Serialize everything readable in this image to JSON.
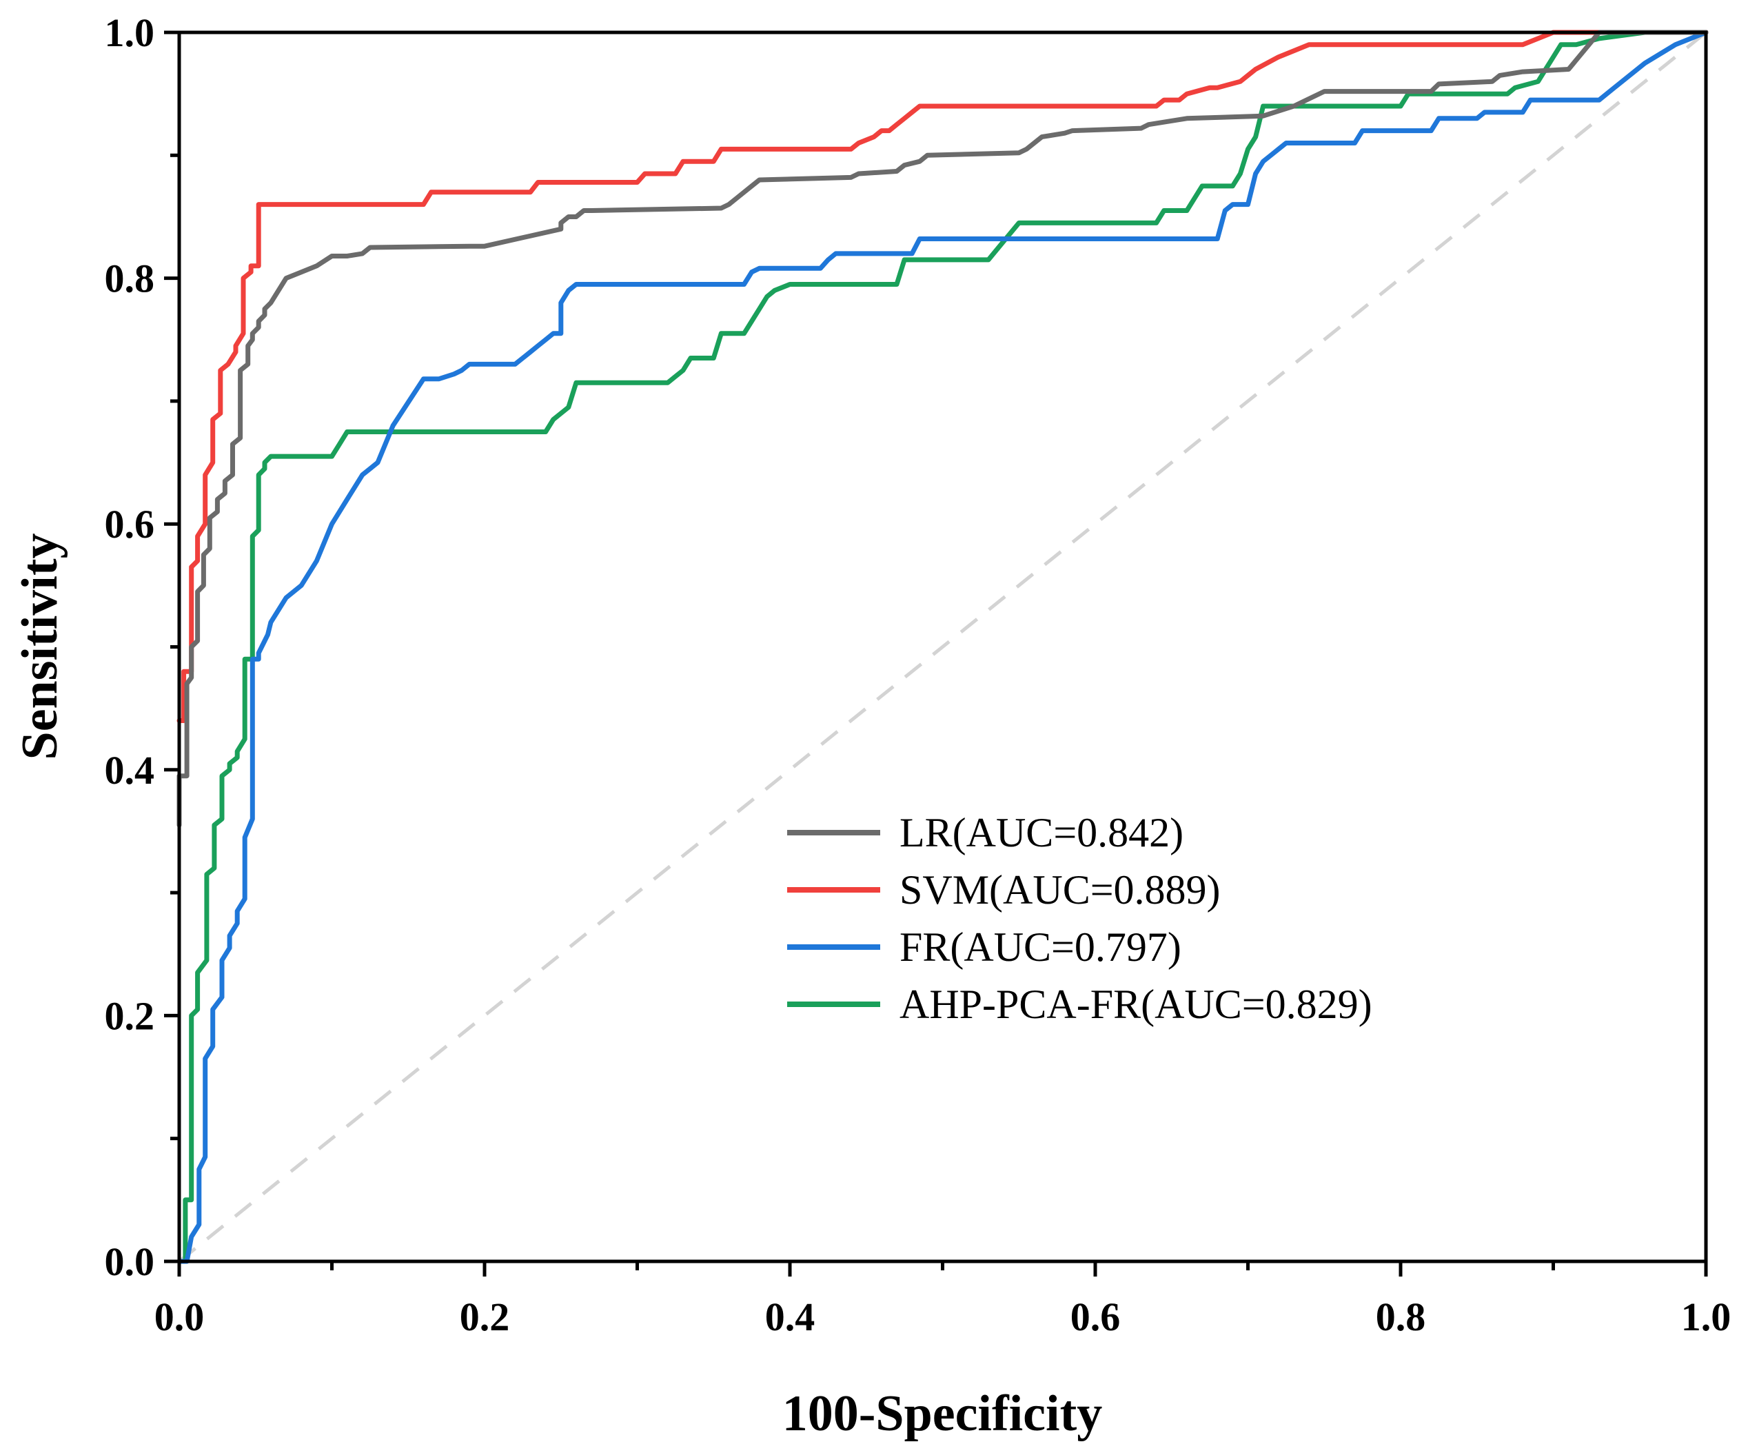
{
  "chart_data": {
    "type": "line",
    "title": "",
    "xlabel": "100-Specificity",
    "ylabel": "Sensitivity",
    "xlim": [
      0,
      1
    ],
    "ylim": [
      0,
      1
    ],
    "x_ticks": [
      "0.0",
      "0.2",
      "0.4",
      "0.6",
      "0.8",
      "1.0"
    ],
    "y_ticks": [
      "0.0",
      "0.2",
      "0.4",
      "0.6",
      "0.8",
      "1.0"
    ],
    "grid": false,
    "legend_position": "lower-right",
    "reference_line": {
      "name": "chance",
      "color": "#d3d3d3",
      "x": [
        0,
        1
      ],
      "y": [
        0,
        1
      ]
    },
    "series": [
      {
        "name": "LR(AUC=0.842)",
        "color": "#6b6b6b",
        "x": [
          0,
          0,
          0.005,
          0.005,
          0.008,
          0.008,
          0.012,
          0.012,
          0.016,
          0.016,
          0.02,
          0.02,
          0.025,
          0.025,
          0.03,
          0.03,
          0.035,
          0.035,
          0.04,
          0.04,
          0.045,
          0.045,
          0.048,
          0.048,
          0.052,
          0.052,
          0.056,
          0.056,
          0.06,
          0.07,
          0.08,
          0.09,
          0.1,
          0.11,
          0.12,
          0.125,
          0.19,
          0.2,
          0.25,
          0.25,
          0.255,
          0.26,
          0.265,
          0.27,
          0.355,
          0.36,
          0.365,
          0.37,
          0.375,
          0.38,
          0.44,
          0.445,
          0.47,
          0.475,
          0.485,
          0.49,
          0.55,
          0.555,
          0.56,
          0.565,
          0.58,
          0.585,
          0.63,
          0.635,
          0.66,
          0.71,
          0.73,
          0.75,
          0.82,
          0.825,
          0.86,
          0.865,
          0.88,
          0.91,
          0.93,
          1
        ],
        "y": [
          0.355,
          0.395,
          0.395,
          0.47,
          0.475,
          0.5,
          0.505,
          0.545,
          0.55,
          0.575,
          0.58,
          0.605,
          0.61,
          0.62,
          0.625,
          0.635,
          0.64,
          0.665,
          0.67,
          0.725,
          0.73,
          0.745,
          0.75,
          0.755,
          0.76,
          0.765,
          0.77,
          0.775,
          0.78,
          0.8,
          0.805,
          0.81,
          0.818,
          0.818,
          0.82,
          0.825,
          0.826,
          0.826,
          0.84,
          0.845,
          0.85,
          0.85,
          0.855,
          0.855,
          0.857,
          0.86,
          0.865,
          0.87,
          0.875,
          0.88,
          0.882,
          0.885,
          0.887,
          0.892,
          0.895,
          0.9,
          0.902,
          0.905,
          0.91,
          0.915,
          0.918,
          0.92,
          0.922,
          0.925,
          0.93,
          0.932,
          0.94,
          0.952,
          0.952,
          0.958,
          0.96,
          0.965,
          0.968,
          0.97,
          1,
          1
        ]
      },
      {
        "name": "SVM(AUC=0.889)",
        "color": "#f0403c",
        "x": [
          0,
          0.003,
          0.003,
          0.008,
          0.008,
          0.012,
          0.012,
          0.017,
          0.017,
          0.022,
          0.022,
          0.027,
          0.027,
          0.032,
          0.032,
          0.037,
          0.037,
          0.042,
          0.042,
          0.047,
          0.047,
          0.052,
          0.052,
          0.16,
          0.165,
          0.23,
          0.235,
          0.3,
          0.305,
          0.325,
          0.33,
          0.35,
          0.355,
          0.44,
          0.445,
          0.455,
          0.46,
          0.465,
          0.47,
          0.475,
          0.48,
          0.485,
          0.64,
          0.645,
          0.655,
          0.66,
          0.675,
          0.68,
          0.695,
          0.7,
          0.705,
          0.72,
          0.73,
          0.74,
          0.75,
          0.88,
          0.9,
          1
        ],
        "y": [
          0.44,
          0.44,
          0.48,
          0.48,
          0.565,
          0.57,
          0.59,
          0.6,
          0.64,
          0.65,
          0.685,
          0.69,
          0.725,
          0.73,
          0.73,
          0.74,
          0.745,
          0.755,
          0.8,
          0.805,
          0.81,
          0.81,
          0.86,
          0.86,
          0.87,
          0.87,
          0.878,
          0.878,
          0.885,
          0.885,
          0.895,
          0.895,
          0.905,
          0.905,
          0.91,
          0.915,
          0.92,
          0.92,
          0.925,
          0.93,
          0.935,
          0.94,
          0.94,
          0.945,
          0.945,
          0.95,
          0.955,
          0.955,
          0.96,
          0.965,
          0.97,
          0.98,
          0.985,
          0.99,
          0.99,
          0.99,
          1,
          1
        ]
      },
      {
        "name": "FR(AUC=0.797)",
        "color": "#1f77d9",
        "x": [
          0,
          0.005,
          0.008,
          0.013,
          0.013,
          0.017,
          0.017,
          0.022,
          0.022,
          0.028,
          0.028,
          0.033,
          0.033,
          0.038,
          0.038,
          0.043,
          0.043,
          0.048,
          0.048,
          0.052,
          0.052,
          0.058,
          0.06,
          0.07,
          0.08,
          0.09,
          0.1,
          0.11,
          0.12,
          0.125,
          0.13,
          0.14,
          0.16,
          0.17,
          0.18,
          0.185,
          0.19,
          0.2,
          0.22,
          0.23,
          0.235,
          0.24,
          0.245,
          0.25,
          0.25,
          0.255,
          0.26,
          0.37,
          0.375,
          0.38,
          0.42,
          0.425,
          0.43,
          0.48,
          0.485,
          0.68,
          0.685,
          0.69,
          0.7,
          0.705,
          0.71,
          0.715,
          0.72,
          0.725,
          0.74,
          0.77,
          0.775,
          0.82,
          0.825,
          0.85,
          0.855,
          0.88,
          0.885,
          0.93,
          0.94,
          0.96,
          0.98,
          1
        ],
        "y": [
          0,
          0,
          0.02,
          0.03,
          0.075,
          0.085,
          0.165,
          0.175,
          0.205,
          0.215,
          0.245,
          0.255,
          0.265,
          0.275,
          0.285,
          0.295,
          0.345,
          0.36,
          0.49,
          0.49,
          0.495,
          0.51,
          0.52,
          0.54,
          0.55,
          0.57,
          0.6,
          0.62,
          0.64,
          0.645,
          0.65,
          0.68,
          0.718,
          0.718,
          0.722,
          0.725,
          0.73,
          0.73,
          0.73,
          0.74,
          0.745,
          0.75,
          0.755,
          0.755,
          0.78,
          0.79,
          0.795,
          0.795,
          0.805,
          0.808,
          0.808,
          0.815,
          0.82,
          0.82,
          0.832,
          0.832,
          0.855,
          0.86,
          0.86,
          0.885,
          0.895,
          0.9,
          0.905,
          0.91,
          0.91,
          0.91,
          0.92,
          0.92,
          0.93,
          0.93,
          0.935,
          0.935,
          0.945,
          0.945,
          0.955,
          0.975,
          0.99,
          1
        ]
      },
      {
        "name": "AHP-PCA-FR(AUC=0.829)",
        "color": "#1aa05a",
        "x": [
          0,
          0.004,
          0.004,
          0.008,
          0.008,
          0.012,
          0.012,
          0.018,
          0.018,
          0.023,
          0.023,
          0.028,
          0.028,
          0.033,
          0.033,
          0.038,
          0.038,
          0.043,
          0.043,
          0.048,
          0.048,
          0.052,
          0.052,
          0.056,
          0.056,
          0.06,
          0.065,
          0.1,
          0.105,
          0.11,
          0.24,
          0.245,
          0.25,
          0.255,
          0.26,
          0.32,
          0.325,
          0.33,
          0.335,
          0.35,
          0.355,
          0.37,
          0.375,
          0.38,
          0.385,
          0.39,
          0.4,
          0.47,
          0.475,
          0.49,
          0.5,
          0.53,
          0.54,
          0.55,
          0.64,
          0.645,
          0.66,
          0.665,
          0.67,
          0.69,
          0.695,
          0.7,
          0.705,
          0.71,
          0.8,
          0.805,
          0.87,
          0.875,
          0.89,
          0.895,
          0.9,
          0.905,
          0.915,
          0.93,
          0.96,
          1
        ],
        "y": [
          0,
          0,
          0.05,
          0.05,
          0.2,
          0.205,
          0.235,
          0.245,
          0.315,
          0.32,
          0.355,
          0.36,
          0.395,
          0.4,
          0.405,
          0.41,
          0.415,
          0.425,
          0.49,
          0.49,
          0.59,
          0.595,
          0.64,
          0.645,
          0.65,
          0.655,
          0.655,
          0.655,
          0.665,
          0.675,
          0.675,
          0.685,
          0.69,
          0.695,
          0.715,
          0.715,
          0.72,
          0.725,
          0.735,
          0.735,
          0.755,
          0.755,
          0.765,
          0.775,
          0.785,
          0.79,
          0.795,
          0.795,
          0.815,
          0.815,
          0.815,
          0.815,
          0.83,
          0.845,
          0.845,
          0.855,
          0.855,
          0.865,
          0.875,
          0.875,
          0.885,
          0.905,
          0.915,
          0.94,
          0.94,
          0.95,
          0.95,
          0.955,
          0.96,
          0.97,
          0.98,
          0.99,
          0.99,
          0.995,
          1,
          1
        ]
      }
    ]
  }
}
